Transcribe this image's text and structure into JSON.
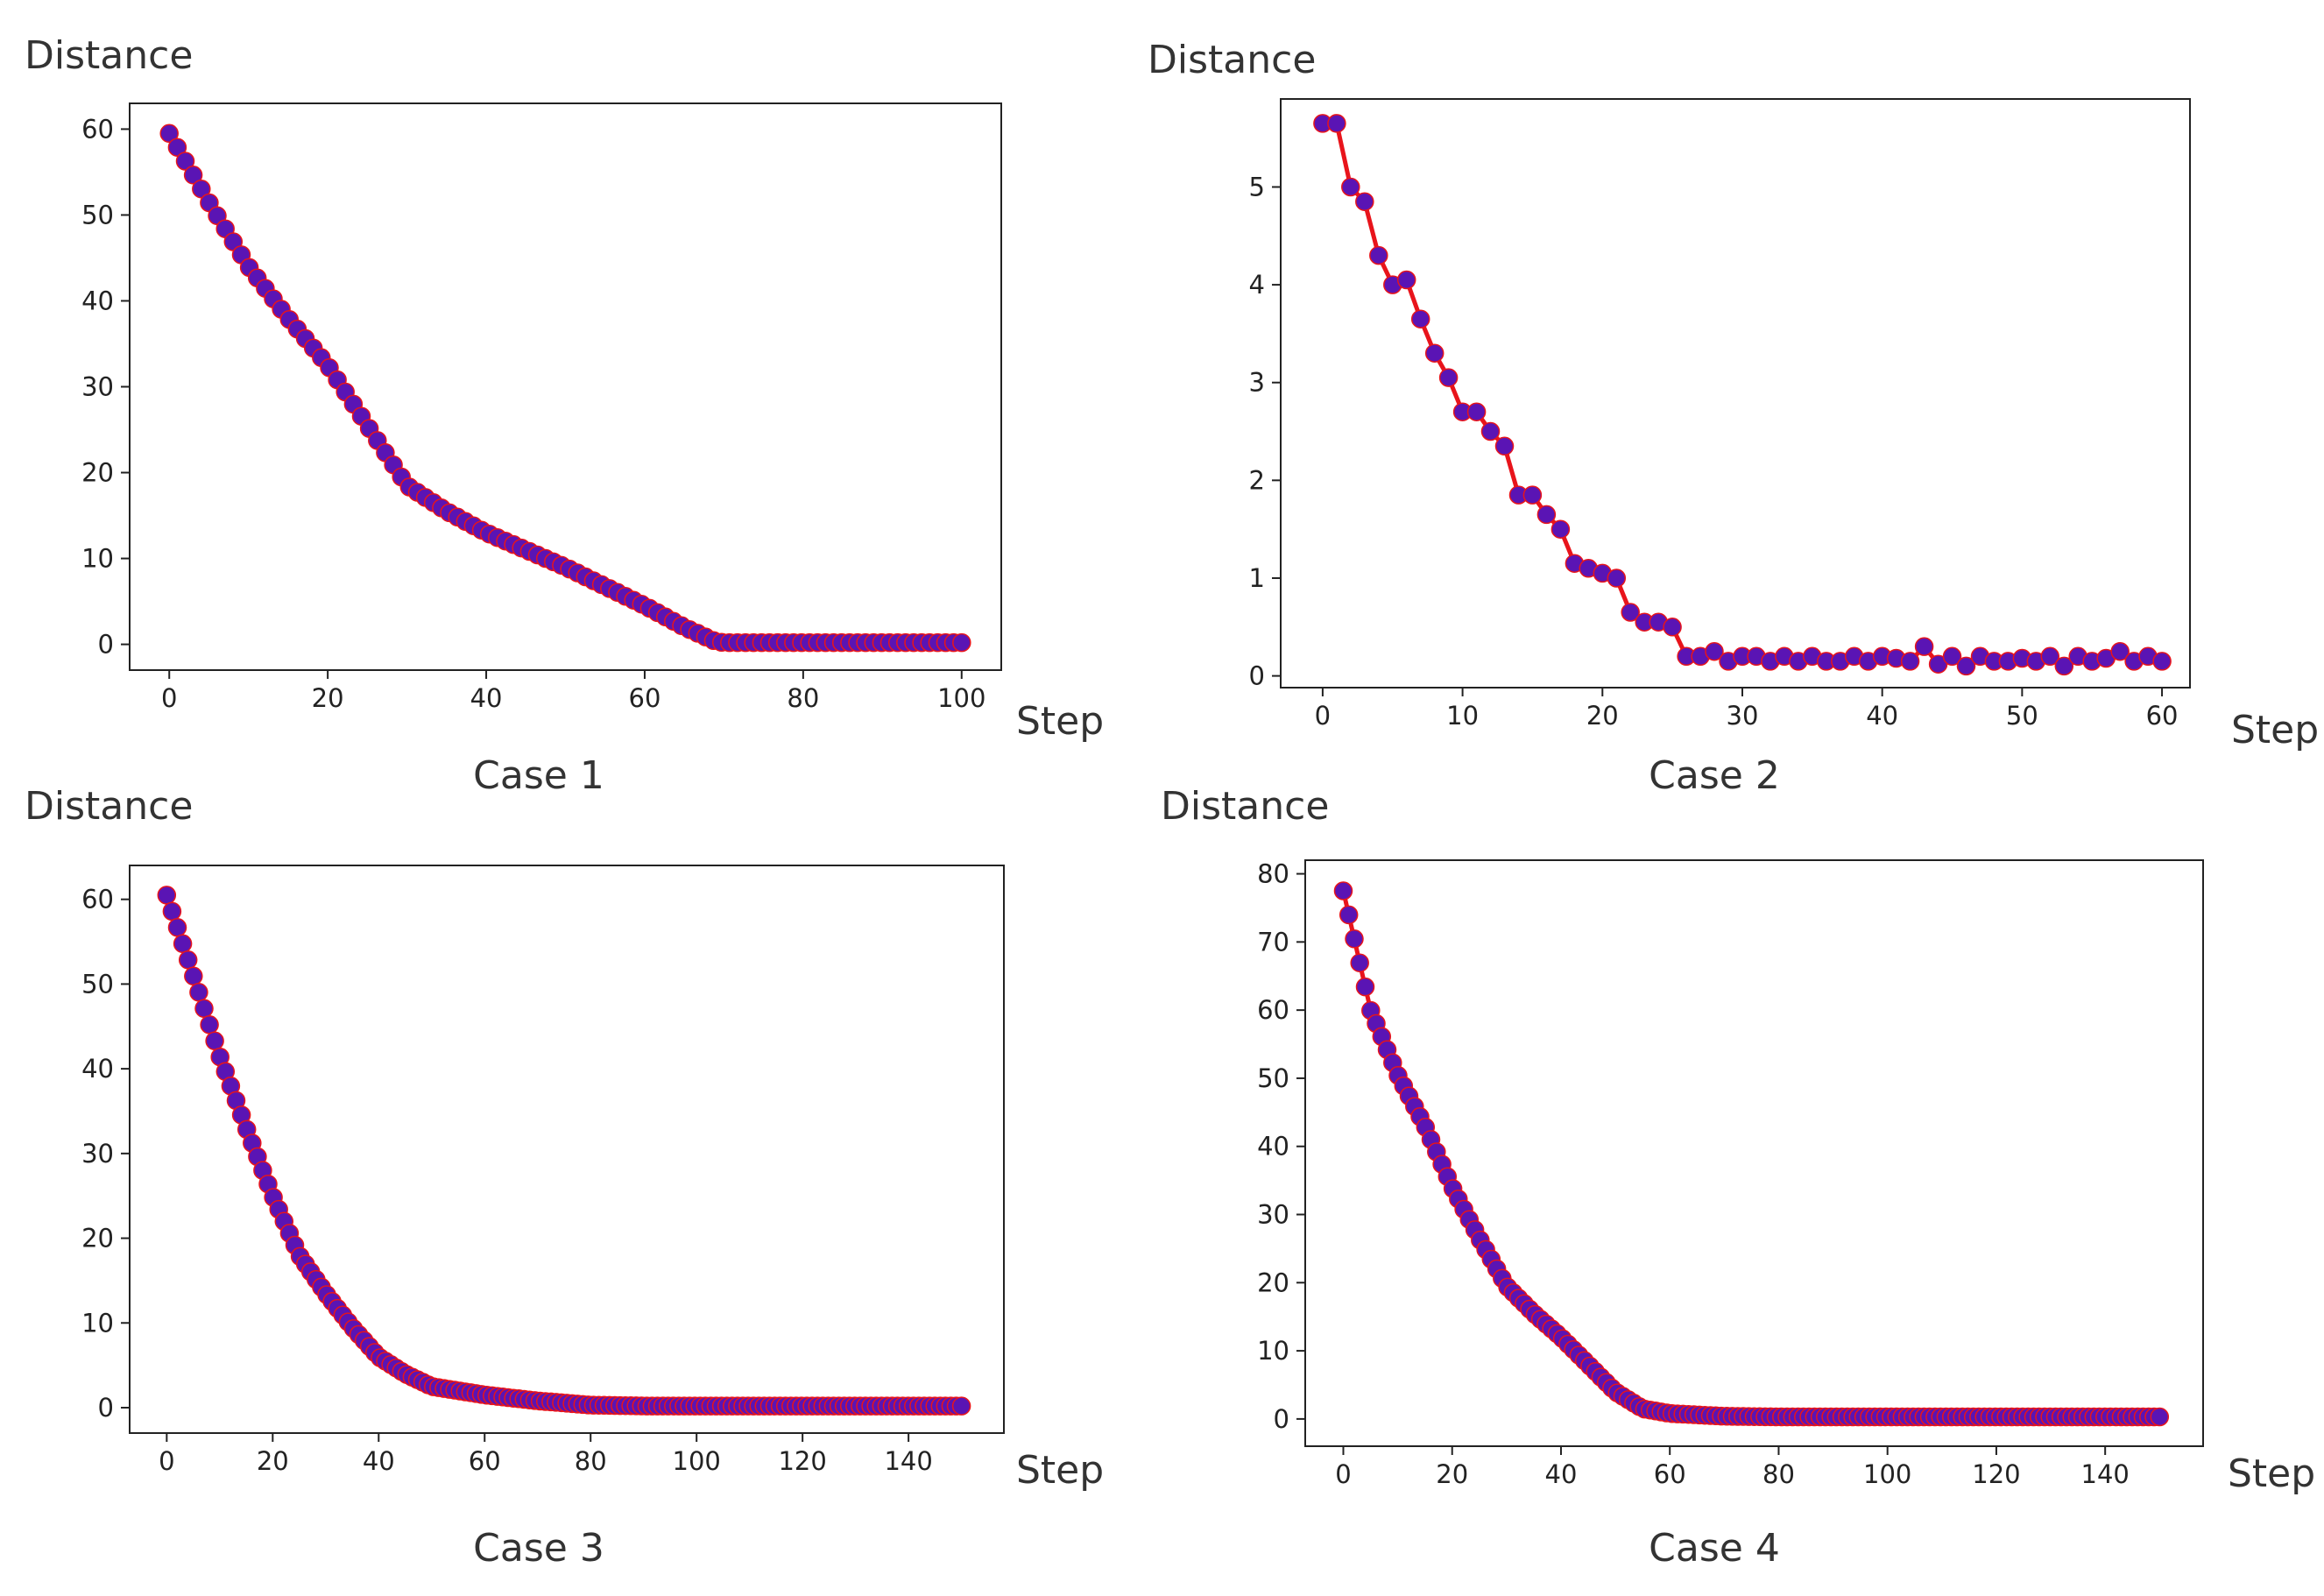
{
  "chart_data": [
    {
      "type": "line",
      "title": "Case 1",
      "ylabel": "Distance",
      "xlabel": "Step",
      "xlim": [
        -5,
        105
      ],
      "ylim": [
        -3,
        63
      ],
      "xticks": [
        0,
        20,
        40,
        60,
        80,
        100
      ],
      "yticks": [
        0,
        10,
        20,
        30,
        40,
        50,
        60
      ],
      "series": [
        {
          "name": "Distance",
          "line_color": "#e8141b",
          "marker_color": "#5a14b4",
          "points": [
            [
              0,
              59.5
            ],
            [
              5,
              51.5
            ],
            [
              10,
              44
            ],
            [
              15,
              38
            ],
            [
              20,
              32.5
            ],
            [
              25,
              25.5
            ],
            [
              30,
              18.5
            ],
            [
              35,
              15.5
            ],
            [
              40,
              13
            ],
            [
              50,
              9
            ],
            [
              60,
              4.5
            ],
            [
              65,
              2
            ],
            [
              69,
              0.3
            ],
            [
              70,
              0.2
            ],
            [
              100,
              0.2
            ]
          ],
          "n_points": 100
        }
      ]
    },
    {
      "type": "line",
      "title": "Case 2",
      "ylabel": "Distance",
      "xlabel": "Step",
      "xlim": [
        -3,
        62
      ],
      "ylim": [
        -0.12,
        5.9
      ],
      "xticks": [
        0,
        10,
        20,
        30,
        40,
        50,
        60
      ],
      "yticks": [
        0,
        1,
        2,
        3,
        4,
        5
      ],
      "series": [
        {
          "name": "Distance",
          "line_color": "#e8141b",
          "marker_color": "#5a14b4",
          "y": [
            5.65,
            5.65,
            5.0,
            4.85,
            4.3,
            4.0,
            4.05,
            3.65,
            3.3,
            3.05,
            2.7,
            2.7,
            2.5,
            2.35,
            1.85,
            1.85,
            1.65,
            1.5,
            1.15,
            1.1,
            1.05,
            1.0,
            0.65,
            0.55,
            0.55,
            0.5,
            0.2,
            0.2,
            0.25,
            0.15,
            0.2,
            0.2,
            0.15,
            0.2,
            0.15,
            0.2,
            0.15,
            0.15,
            0.2,
            0.15,
            0.2,
            0.18,
            0.15,
            0.3,
            0.12,
            0.2,
            0.1,
            0.2,
            0.15,
            0.15,
            0.18,
            0.15,
            0.2,
            0.1,
            0.2,
            0.15,
            0.18,
            0.25,
            0.15,
            0.2,
            0.15
          ]
        }
      ]
    },
    {
      "type": "line",
      "title": "Case 3",
      "ylabel": "Distance",
      "xlabel": "Step",
      "xlim": [
        -7,
        158
      ],
      "ylim": [
        -3,
        64
      ],
      "xticks": [
        0,
        20,
        40,
        60,
        80,
        100,
        120,
        140
      ],
      "yticks": [
        0,
        10,
        20,
        30,
        40,
        50,
        60
      ],
      "series": [
        {
          "name": "Distance",
          "line_color": "#e8141b",
          "marker_color": "#5a14b4",
          "points": [
            [
              0,
              60.5
            ],
            [
              5,
              51
            ],
            [
              10,
              41.5
            ],
            [
              15,
              33
            ],
            [
              20,
              25
            ],
            [
              25,
              18
            ],
            [
              30,
              13.5
            ],
            [
              35,
              9.5
            ],
            [
              40,
              6
            ],
            [
              45,
              4
            ],
            [
              50,
              2.5
            ],
            [
              60,
              1.5
            ],
            [
              70,
              0.8
            ],
            [
              80,
              0.3
            ],
            [
              90,
              0.2
            ],
            [
              150,
              0.2
            ]
          ],
          "n_points": 150
        }
      ]
    },
    {
      "type": "line",
      "title": "Case 4",
      "ylabel": "Distance",
      "xlabel": "Step",
      "xlim": [
        -7,
        158
      ],
      "ylim": [
        -4,
        82
      ],
      "xticks": [
        0,
        20,
        40,
        60,
        80,
        100,
        120,
        140
      ],
      "yticks": [
        0,
        10,
        20,
        30,
        40,
        50,
        60,
        70,
        80
      ],
      "series": [
        {
          "name": "Distance",
          "line_color": "#e8141b",
          "marker_color": "#5a14b4",
          "points": [
            [
              0,
              77.5
            ],
            [
              5,
              60
            ],
            [
              10,
              50.5
            ],
            [
              15,
              43
            ],
            [
              20,
              34
            ],
            [
              25,
              26.5
            ],
            [
              30,
              19.5
            ],
            [
              35,
              15.5
            ],
            [
              40,
              12
            ],
            [
              45,
              8
            ],
            [
              50,
              4
            ],
            [
              55,
              1.5
            ],
            [
              60,
              0.8
            ],
            [
              70,
              0.4
            ],
            [
              80,
              0.3
            ],
            [
              150,
              0.3
            ]
          ],
          "n_points": 150
        }
      ]
    }
  ]
}
